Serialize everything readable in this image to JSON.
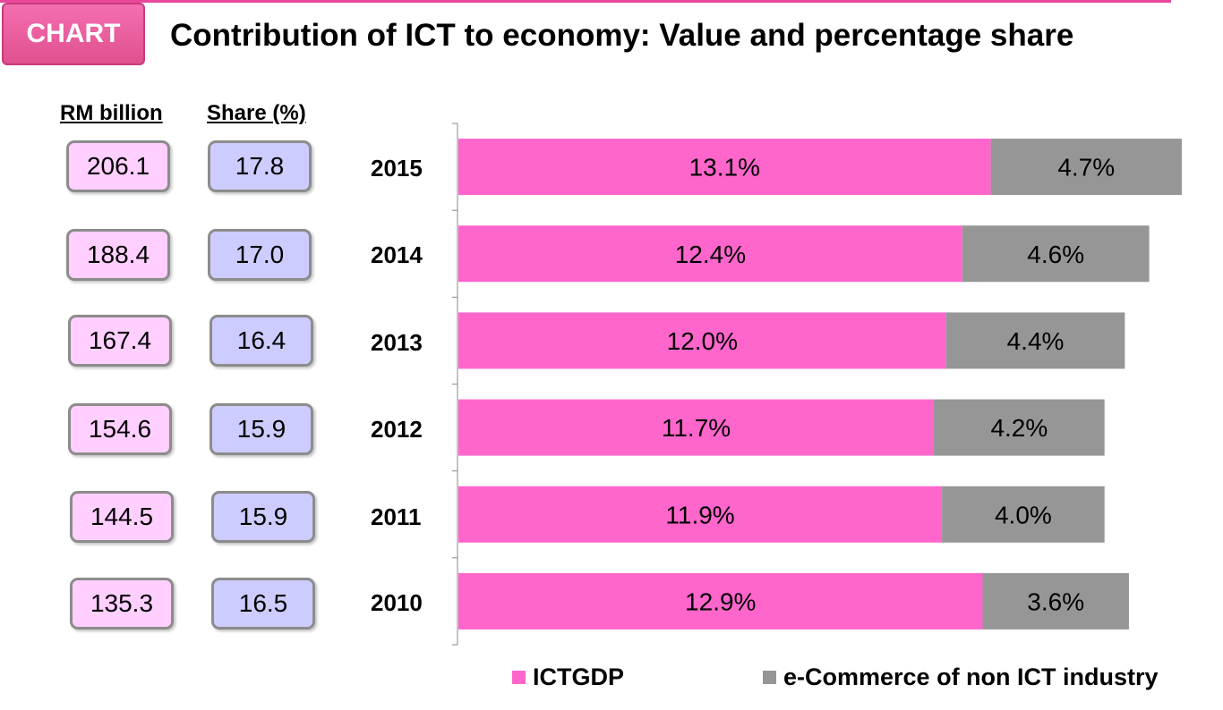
{
  "header": {
    "badge": "CHART",
    "title": "Contribution of ICT to economy: Value and percentage share"
  },
  "columns": {
    "rm_label": "RM billion",
    "share_label": "Share (%)"
  },
  "rows": [
    {
      "year": "2015",
      "rm": "206.1",
      "share": "17.8"
    },
    {
      "year": "2014",
      "rm": "188.4",
      "share": "17.0"
    },
    {
      "year": "2013",
      "rm": "167.4",
      "share": "16.4"
    },
    {
      "year": "2012",
      "rm": "154.6",
      "share": "15.9"
    },
    {
      "year": "2011",
      "rm": "144.5",
      "share": "15.9"
    },
    {
      "year": "2010",
      "rm": "135.3",
      "share": "16.5"
    }
  ],
  "chart_data": {
    "type": "bar",
    "orientation": "horizontal",
    "stacked": true,
    "categories": [
      "2015",
      "2014",
      "2013",
      "2012",
      "2011",
      "2010"
    ],
    "series": [
      {
        "name": "ICTGDP",
        "color": "#ff66cc",
        "values": [
          13.1,
          12.4,
          12.0,
          11.7,
          11.9,
          12.9
        ],
        "labels": [
          "13.1%",
          "12.4%",
          "12.0%",
          "11.7%",
          "11.9%",
          "12.9%"
        ]
      },
      {
        "name": "e-Commerce of non ICT industry",
        "color": "#969696",
        "values": [
          4.7,
          4.6,
          4.4,
          4.2,
          4.0,
          3.6
        ],
        "labels": [
          "4.7%",
          "4.6%",
          "4.4%",
          "4.2%",
          "4.0%",
          "3.6%"
        ]
      }
    ],
    "xlim": [
      0,
      18.0
    ],
    "legend": "bottom"
  }
}
